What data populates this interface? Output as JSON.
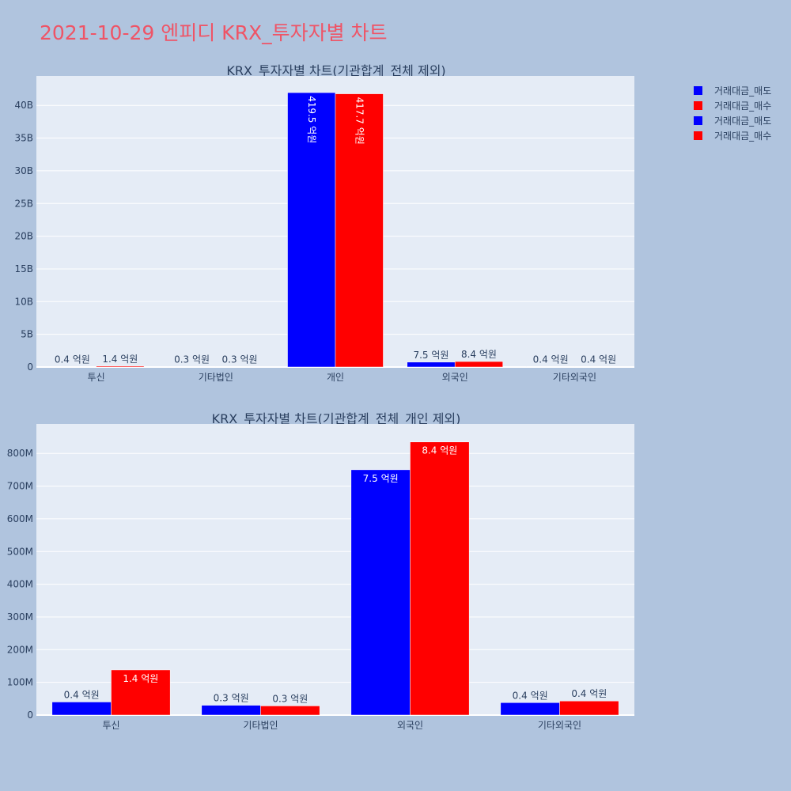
{
  "title": "2021-10-29 엔피디 KRX_투자자별 차트",
  "colors": {
    "background": "#b0c4de",
    "plot_bg": "#e5ecf6",
    "grid": "#ffffff",
    "title": "#ef5466",
    "text": "#2a3f5f",
    "sell": "#0000ff",
    "buy": "#ff0000"
  },
  "legend": {
    "placement": "top-right",
    "entries": [
      {
        "label": "거래대금_매도",
        "color": "#0000ff"
      },
      {
        "label": "거래대금_매수",
        "color": "#ff0000"
      },
      {
        "label": "거래대금_매도",
        "color": "#0000ff"
      },
      {
        "label": "거래대금_매수",
        "color": "#ff0000"
      }
    ]
  },
  "chart_data": [
    {
      "type": "bar",
      "title": "KRX_투자자별 차트(기관합계_전체 제외)",
      "categories": [
        "투신",
        "기타법인",
        "개인",
        "외국인",
        "기타외국인"
      ],
      "ylim": [
        0,
        44500000000
      ],
      "yticks": [
        0,
        5000000000,
        10000000000,
        15000000000,
        20000000000,
        25000000000,
        30000000000,
        35000000000,
        40000000000
      ],
      "ytick_labels": [
        "0",
        "5B",
        "10B",
        "15B",
        "20B",
        "25B",
        "30B",
        "35B",
        "40B"
      ],
      "grid": true,
      "series": [
        {
          "name": "거래대금_매도",
          "color": "#0000ff",
          "values": [
            40000000,
            30000000,
            41950000000,
            750000000,
            40000000
          ],
          "labels": [
            "0.4 억원",
            "0.3 억원",
            "419.5 억원",
            "7.5 억원",
            "0.4 억원"
          ]
        },
        {
          "name": "거래대금_매수",
          "color": "#ff0000",
          "values": [
            140000000,
            30000000,
            41770000000,
            840000000,
            40000000
          ],
          "labels": [
            "1.4 억원",
            "0.3 억원",
            "417.7 억원",
            "8.4 억원",
            "0.4 억원"
          ]
        }
      ]
    },
    {
      "type": "bar",
      "title": "KRX_투자자별 차트(기관합계_전체_개인 제외)",
      "categories": [
        "투신",
        "기타법인",
        "외국인",
        "기타외국인"
      ],
      "ylim": [
        0,
        890000000
      ],
      "yticks": [
        0,
        100000000,
        200000000,
        300000000,
        400000000,
        500000000,
        600000000,
        700000000,
        800000000
      ],
      "ytick_labels": [
        "0",
        "100M",
        "200M",
        "300M",
        "400M",
        "500M",
        "600M",
        "700M",
        "800M"
      ],
      "grid": true,
      "series": [
        {
          "name": "거래대금_매도",
          "color": "#0000ff",
          "values": [
            40000000,
            30000000,
            750000000,
            38000000
          ],
          "labels": [
            "0.4 억원",
            "0.3 억원",
            "7.5 억원",
            "0.4 억원"
          ]
        },
        {
          "name": "거래대금_매수",
          "color": "#ff0000",
          "values": [
            138000000,
            28000000,
            835000000,
            43000000
          ],
          "labels": [
            "1.4 억원",
            "0.3 억원",
            "8.4 억원",
            "0.4 억원"
          ]
        }
      ]
    }
  ]
}
